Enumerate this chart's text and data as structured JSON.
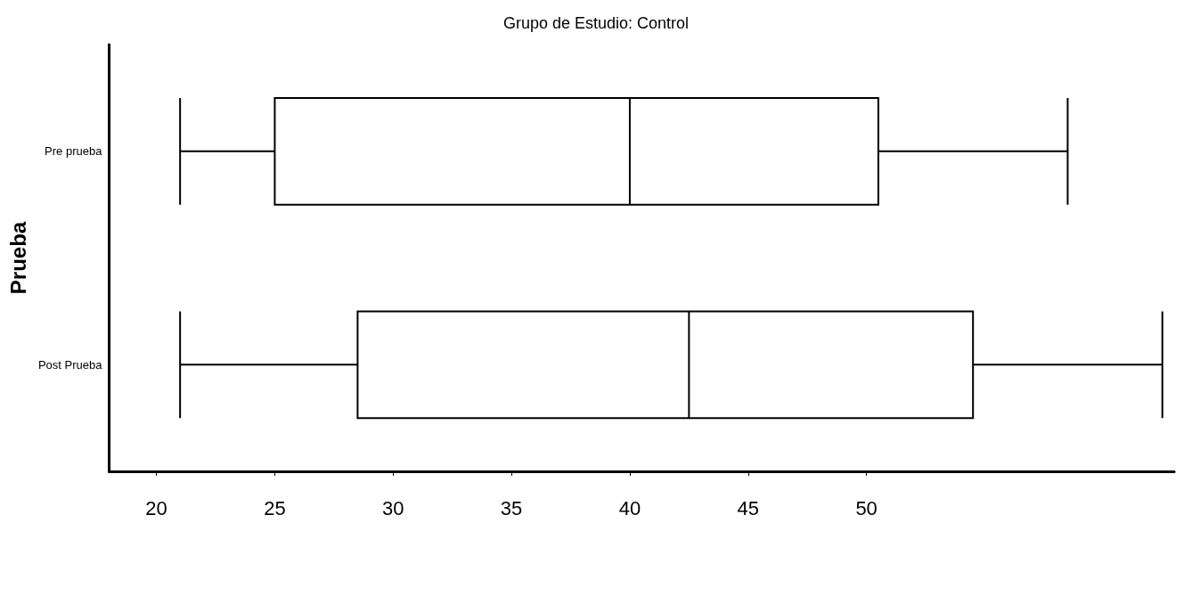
{
  "chart_data": {
    "type": "box",
    "title": "Grupo de Estudio: Control",
    "ylabel": "Prueba",
    "orientation": "horizontal",
    "categories": [
      "Pre prueba",
      "Post Prueba"
    ],
    "boxes": [
      {
        "low": 21,
        "q1": 25,
        "median": 40,
        "q3": 50.5,
        "high": 58.5
      },
      {
        "low": 21,
        "q1": 28.5,
        "median": 42.5,
        "q3": 54.5,
        "high": 62.5
      }
    ],
    "color": "#000000",
    "xlim": [
      18,
      63
    ],
    "xticks": [
      20,
      25,
      30,
      35,
      40,
      45,
      50
    ],
    "grid": false
  }
}
